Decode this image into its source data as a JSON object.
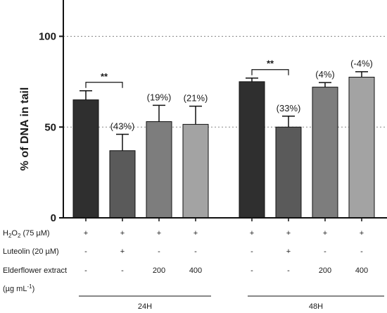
{
  "chart_data": {
    "type": "bar",
    "ylabel": "% of DNA in tail",
    "ylim": [
      0,
      120
    ],
    "yticks": [
      0,
      50,
      100
    ],
    "reference_lines": [
      50,
      100
    ],
    "groups": [
      "24H",
      "48H"
    ],
    "bars": [
      {
        "group": "24H",
        "value": 65,
        "error": 5,
        "color": "#2f2f2f",
        "annotation": ""
      },
      {
        "group": "24H",
        "value": 37,
        "error": 9,
        "color": "#5a5a5a",
        "annotation": "(43%)"
      },
      {
        "group": "24H",
        "value": 53,
        "error": 9,
        "color": "#7d7d7d",
        "annotation": "(19%)"
      },
      {
        "group": "24H",
        "value": 51.5,
        "error": 10,
        "color": "#a3a3a3",
        "annotation": "(21%)"
      },
      {
        "group": "48H",
        "value": 75,
        "error": 2,
        "color": "#2f2f2f",
        "annotation": ""
      },
      {
        "group": "48H",
        "value": 50,
        "error": 6,
        "color": "#5a5a5a",
        "annotation": "(33%)"
      },
      {
        "group": "48H",
        "value": 72,
        "error": 2.5,
        "color": "#7d7d7d",
        "annotation": "(4%)"
      },
      {
        "group": "48H",
        "value": 77.5,
        "error": 3,
        "color": "#a3a3a3",
        "annotation": "(-4%)"
      }
    ],
    "significance": [
      {
        "from_bar": 0,
        "to_bar": 1,
        "label": "**"
      },
      {
        "from_bar": 4,
        "to_bar": 5,
        "label": "**"
      }
    ],
    "conditions": [
      {
        "label": "H",
        "sub": "2",
        "label_rest": "O",
        "sub2": "2",
        "label_tail": " (75 µM)",
        "values": [
          "+",
          "+",
          "+",
          "+",
          "+",
          "+",
          "+",
          "+"
        ]
      },
      {
        "label": "Luteolin (20 µM)",
        "values": [
          "-",
          "+",
          "-",
          "-",
          "-",
          "+",
          "-",
          "-"
        ]
      },
      {
        "label": "Elderflower extract",
        "values": [
          "-",
          "-",
          "200",
          "400",
          "-",
          "-",
          "200",
          "400"
        ]
      }
    ],
    "unit_label": "(µg mL",
    "unit_sup": "-1",
    "unit_close": ")"
  }
}
